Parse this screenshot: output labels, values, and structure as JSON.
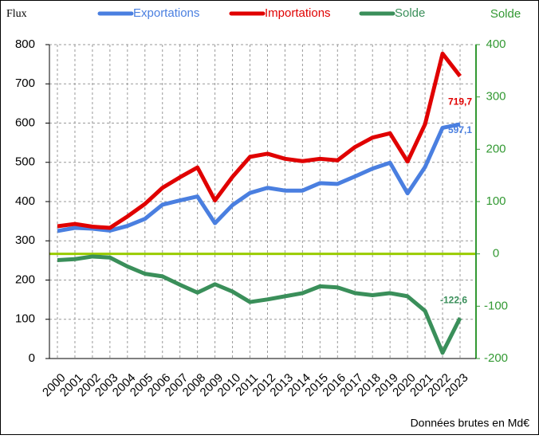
{
  "chart_data": {
    "type": "line",
    "y_axis_label": "Flux",
    "y2_axis_label": "Solde",
    "footnote": "Données brutes en Md€",
    "categories": [
      "2000",
      "2001",
      "2002",
      "2003",
      "2004",
      "2005",
      "2006",
      "2007",
      "2008",
      "2009",
      "2010",
      "2011",
      "2012",
      "2013",
      "2014",
      "2015",
      "2016",
      "2017",
      "2018",
      "2019",
      "2020",
      "2021",
      "2022",
      "2023"
    ],
    "series": [
      {
        "name": "Exportations",
        "color": "#4a7fe0",
        "axis": "y",
        "values": [
          325,
          333,
          331,
          326,
          338,
          356,
          392,
          403,
          413,
          345,
          391,
          422,
          435,
          428,
          428,
          447,
          445,
          464,
          484,
          499,
          421,
          488,
          588,
          597.1
        ],
        "value_labels": [
          null,
          null,
          null,
          null,
          null,
          null,
          null,
          null,
          null,
          null,
          null,
          null,
          null,
          null,
          null,
          null,
          null,
          null,
          null,
          null,
          null,
          null,
          null,
          "597,1"
        ]
      },
      {
        "name": "Importations",
        "color": "#e00000",
        "axis": "y",
        "values": [
          337,
          343,
          336,
          333,
          362,
          394,
          435,
          462,
          487,
          403,
          463,
          514,
          522,
          509,
          503,
          509,
          505,
          539,
          563,
          574,
          502,
          597,
          777,
          719.7
        ],
        "value_labels": [
          null,
          null,
          null,
          null,
          null,
          null,
          null,
          null,
          null,
          null,
          null,
          null,
          null,
          null,
          null,
          null,
          null,
          null,
          null,
          null,
          null,
          null,
          null,
          "719,7"
        ]
      },
      {
        "name": "Solde",
        "color": "#3a8f5a",
        "axis": "y2",
        "values": [
          -12,
          -10,
          -5,
          -7,
          -24,
          -38,
          -43,
          -59,
          -74,
          -58,
          -72,
          -92,
          -87,
          -81,
          -75,
          -62,
          -64,
          -75,
          -79,
          -75,
          -81,
          -109,
          -189,
          -122.6
        ],
        "value_labels": [
          null,
          null,
          null,
          null,
          null,
          null,
          null,
          null,
          null,
          null,
          null,
          null,
          null,
          null,
          null,
          null,
          null,
          null,
          null,
          null,
          null,
          null,
          null,
          "-122,6"
        ]
      }
    ],
    "ylim": [
      0,
      800
    ],
    "yticks": [
      0,
      100,
      200,
      300,
      400,
      500,
      600,
      700,
      800
    ],
    "y2lim": [
      -200,
      400
    ],
    "y2ticks": [
      -200,
      -100,
      0,
      100,
      200,
      300,
      400
    ],
    "y2_color": "#339933",
    "y2_zero_line_color": "#99cc00",
    "grid": true,
    "legend": "top"
  }
}
